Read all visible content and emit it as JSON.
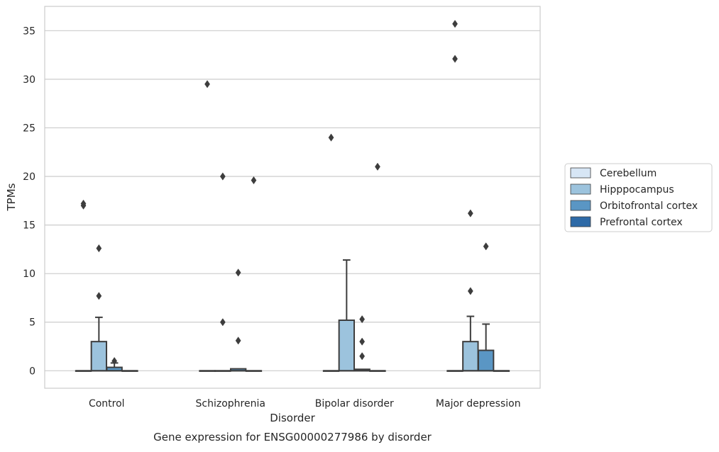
{
  "caption": "Gene expression for ENSG00000277986 by disorder",
  "colors": {
    "background": "#ffffff",
    "grid": "#cccccc",
    "frame": "#cccccc",
    "box_edge": "#3d3d3d",
    "text": "#262626"
  },
  "chart_data": {
    "type": "box",
    "xlabel": "Disorder",
    "ylabel": "TPMs",
    "ylim": [
      -1.8,
      37.5
    ],
    "yticks": [
      0,
      5,
      10,
      15,
      20,
      25,
      30,
      35
    ],
    "grid": true,
    "categories": [
      "Control",
      "Schizophrenia",
      "Bipolar disorder",
      "Major depression"
    ],
    "legend": {
      "position": "right-center"
    },
    "series": [
      {
        "name": "Cerebellum",
        "color": "#d7e6f5",
        "boxes": [
          {
            "whislo": 0,
            "q1": 0,
            "med": 0,
            "q3": 0,
            "whishi": 0,
            "fliers": [
              17.0,
              17.2
            ]
          },
          {
            "whislo": 0,
            "q1": 0,
            "med": 0,
            "q3": 0,
            "whishi": 0,
            "fliers": [
              29.5
            ]
          },
          {
            "whislo": 0,
            "q1": 0,
            "med": 0,
            "q3": 0,
            "whishi": 0,
            "fliers": [
              24.0
            ]
          },
          {
            "whislo": 0,
            "q1": 0,
            "med": 0,
            "q3": 0,
            "whishi": 0,
            "fliers": [
              35.7,
              32.1
            ]
          }
        ]
      },
      {
        "name": "Hipppocampus",
        "color": "#9cc3dd",
        "boxes": [
          {
            "whislo": 0,
            "q1": 0,
            "med": 0,
            "q3": 3.0,
            "whishi": 5.5,
            "fliers": [
              12.6,
              7.7
            ]
          },
          {
            "whislo": 0,
            "q1": 0,
            "med": 0,
            "q3": 0,
            "whishi": 0,
            "fliers": [
              20.0,
              5.0
            ]
          },
          {
            "whislo": 0,
            "q1": 0,
            "med": 0,
            "q3": 5.2,
            "whishi": 11.4,
            "fliers": []
          },
          {
            "whislo": 0,
            "q1": 0,
            "med": 0,
            "q3": 3.0,
            "whishi": 5.6,
            "fliers": [
              16.2,
              8.2
            ]
          }
        ]
      },
      {
        "name": "Orbitofrontal cortex",
        "color": "#5a96c4",
        "boxes": [
          {
            "whislo": 0,
            "q1": 0,
            "med": 0,
            "q3": 0.35,
            "whishi": 0.8,
            "fliers": [
              1.0
            ]
          },
          {
            "whislo": 0,
            "q1": 0,
            "med": 0,
            "q3": 0.2,
            "whishi": 0.2,
            "fliers": [
              10.1,
              3.1
            ]
          },
          {
            "whislo": 0,
            "q1": 0,
            "med": 0,
            "q3": 0.15,
            "whishi": 0.15,
            "fliers": [
              5.3,
              3.0,
              1.5
            ]
          },
          {
            "whislo": 0,
            "q1": 0,
            "med": 0,
            "q3": 2.1,
            "whishi": 4.8,
            "fliers": [
              12.8
            ]
          }
        ]
      },
      {
        "name": "Prefrontal cortex",
        "color": "#2e6aa7",
        "boxes": [
          {
            "whislo": 0,
            "q1": 0,
            "med": 0,
            "q3": 0,
            "whishi": 0,
            "fliers": []
          },
          {
            "whislo": 0,
            "q1": 0,
            "med": 0,
            "q3": 0,
            "whishi": 0,
            "fliers": [
              19.6
            ]
          },
          {
            "whislo": 0,
            "q1": 0,
            "med": 0,
            "q3": 0,
            "whishi": 0,
            "fliers": [
              21.0
            ]
          },
          {
            "whislo": 0,
            "q1": 0,
            "med": 0,
            "q3": 0,
            "whishi": 0,
            "fliers": []
          }
        ]
      }
    ]
  }
}
